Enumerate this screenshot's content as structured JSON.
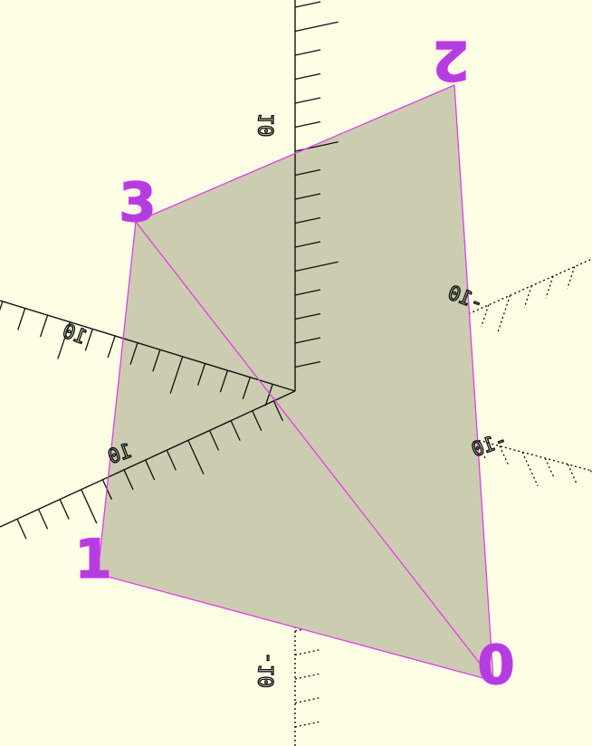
{
  "scene": {
    "background": "#ffffe5",
    "face_color": "#cccdb0",
    "edge_color": "#e43ce4",
    "axis_color": "#111111"
  },
  "vertices": [
    {
      "id": "0",
      "label": "0"
    },
    {
      "id": "1",
      "label": "1"
    },
    {
      "id": "2",
      "label": "2"
    },
    {
      "id": "3",
      "label": "3"
    }
  ],
  "faces": [
    {
      "id": "triangle-a",
      "vertices": [
        "3",
        "1",
        "0"
      ]
    },
    {
      "id": "triangle-b",
      "vertices": [
        "3",
        "0",
        "2"
      ]
    }
  ],
  "axes": {
    "tick_labels": {
      "z_pos": "10",
      "z_neg": "-10",
      "x_pos": "10",
      "x_neg": "-10",
      "y_pos": "10",
      "y_neg": "-10"
    }
  }
}
